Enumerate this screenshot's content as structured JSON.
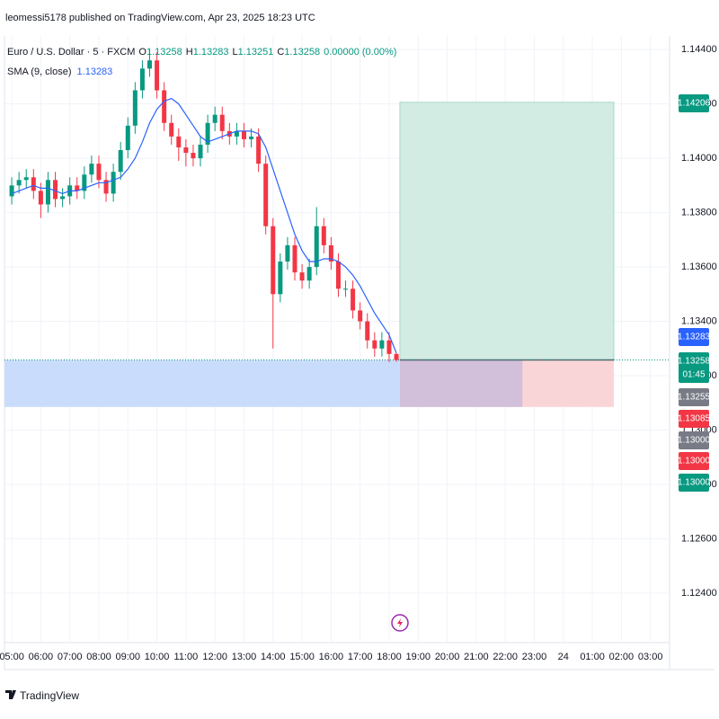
{
  "chart_data": {
    "type": "candlestick",
    "header": "leomessi5178 published on TradingView.com, Apr 23, 2025 18:23 UTC",
    "title": "Euro / U.S. Dollar · 5 · FXCM",
    "ohlc_legend": [
      {
        "key": "O",
        "value": "1.13258"
      },
      {
        "key": "H",
        "value": "1.13283"
      },
      {
        "key": "L",
        "value": "1.13251"
      },
      {
        "key": "C",
        "value": "1.13258"
      }
    ],
    "change": "0.00000 (0.00%)",
    "indicator": {
      "name": "SMA (9, close)",
      "value": "1.13283",
      "color": "#2962ff"
    },
    "up_color": "#089981",
    "down_color": "#f23645",
    "x": [
      5,
      5.25,
      5.5,
      5.75,
      6,
      6.25,
      6.5,
      6.75,
      7,
      7.25,
      7.5,
      7.75,
      8,
      8.25,
      8.5,
      8.75,
      9,
      9.25,
      9.5,
      9.75,
      10,
      10.25,
      10.5,
      10.75,
      11,
      11.25,
      11.5,
      11.75,
      12,
      12.25,
      12.5,
      12.75,
      13,
      13.25,
      13.5,
      13.75,
      14,
      14.25,
      14.5,
      14.75,
      15,
      15.25,
      15.5,
      15.75,
      16,
      16.25,
      16.5,
      16.75,
      17,
      17.25,
      17.5,
      17.75,
      18,
      18.25
    ],
    "open": [
      1.1386,
      1.139,
      1.1392,
      1.1393,
      1.1388,
      1.1383,
      1.1392,
      1.1385,
      1.1386,
      1.139,
      1.1388,
      1.1394,
      1.1398,
      1.1392,
      1.1387,
      1.1395,
      1.1403,
      1.1412,
      1.1425,
      1.1433,
      1.1436,
      1.1425,
      1.1413,
      1.1408,
      1.1404,
      1.1402,
      1.14,
      1.1405,
      1.1413,
      1.1416,
      1.141,
      1.1408,
      1.141,
      1.1407,
      1.1408,
      1.1398,
      1.1375,
      1.135,
      1.1362,
      1.1368,
      1.1358,
      1.1355,
      1.136,
      1.1375,
      1.1368,
      1.1362,
      1.1352,
      1.1352,
      1.1344,
      1.134,
      1.1333,
      1.133,
      1.1333,
      1.1328
    ],
    "high": [
      1.1393,
      1.1395,
      1.1396,
      1.1396,
      1.1391,
      1.1395,
      1.1395,
      1.1389,
      1.1393,
      1.1393,
      1.1397,
      1.1401,
      1.1401,
      1.1395,
      1.1398,
      1.1406,
      1.1415,
      1.1428,
      1.1436,
      1.144,
      1.1439,
      1.1428,
      1.1416,
      1.1411,
      1.1407,
      1.1405,
      1.1408,
      1.1416,
      1.1419,
      1.1419,
      1.1413,
      1.1413,
      1.1413,
      1.1411,
      1.1411,
      1.1401,
      1.1378,
      1.1365,
      1.1371,
      1.1371,
      1.1361,
      1.1363,
      1.1382,
      1.1378,
      1.1371,
      1.1365,
      1.1355,
      1.1355,
      1.1347,
      1.1343,
      1.1336,
      1.1336,
      1.1336,
      1.13283
    ],
    "low": [
      1.1383,
      1.1387,
      1.1389,
      1.1385,
      1.1378,
      1.138,
      1.1382,
      1.1382,
      1.1383,
      1.1385,
      1.1385,
      1.1391,
      1.1389,
      1.1384,
      1.1384,
      1.1392,
      1.14,
      1.1409,
      1.1422,
      1.143,
      1.1422,
      1.141,
      1.1405,
      1.1399,
      1.1397,
      1.1397,
      1.1397,
      1.1402,
      1.141,
      1.1407,
      1.1405,
      1.1405,
      1.1404,
      1.1404,
      1.1395,
      1.1372,
      1.133,
      1.1347,
      1.1359,
      1.1355,
      1.1352,
      1.1352,
      1.1357,
      1.1365,
      1.1359,
      1.1349,
      1.1349,
      1.1341,
      1.1337,
      1.133,
      1.1327,
      1.1327,
      1.1325,
      1.13251
    ],
    "close": [
      1.139,
      1.1392,
      1.1393,
      1.1388,
      1.1383,
      1.1392,
      1.1385,
      1.1386,
      1.139,
      1.1388,
      1.1394,
      1.1398,
      1.1392,
      1.1387,
      1.1395,
      1.1403,
      1.1412,
      1.1425,
      1.1433,
      1.1436,
      1.1425,
      1.1413,
      1.1408,
      1.1404,
      1.1402,
      1.14,
      1.1405,
      1.1413,
      1.1416,
      1.141,
      1.1408,
      1.141,
      1.1407,
      1.1408,
      1.1398,
      1.1375,
      1.135,
      1.1362,
      1.1368,
      1.1358,
      1.1355,
      1.136,
      1.1375,
      1.1368,
      1.1362,
      1.1352,
      1.1352,
      1.1344,
      1.134,
      1.1333,
      1.133,
      1.1333,
      1.1328,
      1.13258
    ],
    "sma": [
      1.1387,
      1.1388,
      1.1389,
      1.139,
      1.1389,
      1.1389,
      1.1388,
      1.1387,
      1.1388,
      1.1388,
      1.1389,
      1.139,
      1.1391,
      1.1391,
      1.1392,
      1.1393,
      1.1396,
      1.14,
      1.1406,
      1.1413,
      1.1418,
      1.1421,
      1.1422,
      1.142,
      1.1416,
      1.1412,
      1.1408,
      1.1406,
      1.1407,
      1.1408,
      1.1409,
      1.141,
      1.141,
      1.141,
      1.1409,
      1.1404,
      1.1396,
      1.1388,
      1.138,
      1.1372,
      1.1366,
      1.1362,
      1.1362,
      1.1363,
      1.1363,
      1.1362,
      1.136,
      1.1357,
      1.1353,
      1.1348,
      1.1343,
      1.1339,
      1.1335,
      1.13283
    ],
    "xlim": [
      4.75,
      27.66
    ],
    "xticks": [
      {
        "value": 5,
        "label": "05:00"
      },
      {
        "value": 6,
        "label": "06:00"
      },
      {
        "value": 7,
        "label": "07:00"
      },
      {
        "value": 8,
        "label": "08:00"
      },
      {
        "value": 9,
        "label": "09:00"
      },
      {
        "value": 10,
        "label": "10:00"
      },
      {
        "value": 11,
        "label": "11:00"
      },
      {
        "value": 12,
        "label": "12:00"
      },
      {
        "value": 13,
        "label": "13:00"
      },
      {
        "value": 14,
        "label": "14:00"
      },
      {
        "value": 15,
        "label": "15:00"
      },
      {
        "value": 16,
        "label": "16:00"
      },
      {
        "value": 17,
        "label": "17:00"
      },
      {
        "value": 18,
        "label": "18:00"
      },
      {
        "value": 19,
        "label": "19:00"
      },
      {
        "value": 20,
        "label": "20:00"
      },
      {
        "value": 21,
        "label": "21:00"
      },
      {
        "value": 22,
        "label": "22:00"
      },
      {
        "value": 23,
        "label": "23:00"
      },
      {
        "value": 24,
        "label": "24"
      },
      {
        "value": 25,
        "label": "01:00"
      },
      {
        "value": 26,
        "label": "02:00"
      },
      {
        "value": 27,
        "label": "03:00"
      }
    ],
    "ylim": [
      1.12218,
      1.1445
    ],
    "yticks": [
      {
        "value": 1.144,
        "label": "1.14400"
      },
      {
        "value": 1.142,
        "label": "1.14200"
      },
      {
        "value": 1.14,
        "label": "1.14000"
      },
      {
        "value": 1.138,
        "label": "1.13800"
      },
      {
        "value": 1.136,
        "label": "1.13600"
      },
      {
        "value": 1.134,
        "label": "1.13400"
      },
      {
        "value": 1.132,
        "label": "1.13200"
      },
      {
        "value": 1.13,
        "label": "1.13000"
      },
      {
        "value": 1.128,
        "label": "1.12800"
      },
      {
        "value": 1.126,
        "label": "1.12600"
      },
      {
        "value": 1.124,
        "label": "1.12400"
      }
    ],
    "grid": true,
    "position": {
      "start": 18.37,
      "end": 25.74,
      "mid": 22.59,
      "entry": 1.13258,
      "target": 1.14206,
      "stop": 1.13085
    },
    "price_badges": [
      {
        "label": "1.14206",
        "color": "#089981"
      },
      {
        "label": "1.13283",
        "color": "#2962ff"
      },
      {
        "label": "1.13258",
        "sub": "01:45",
        "color": "#089981"
      },
      {
        "label": "1.13255",
        "color": "#787b86"
      },
      {
        "label": "1.13085",
        "color": "#f23645"
      },
      {
        "label": "1.13000",
        "color": "#787b86"
      },
      {
        "label": "1.13000",
        "color": "#f23645"
      },
      {
        "label": "1.13000",
        "color": "#089981"
      }
    ],
    "footer": "TradingView"
  }
}
